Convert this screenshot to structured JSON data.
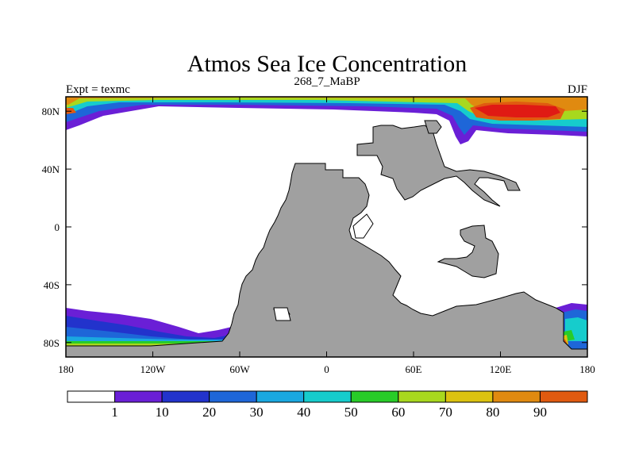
{
  "chart_data": {
    "type": "heatmap",
    "title": "Atmos Sea Ice Concentration",
    "left_label": "Expt = texmc",
    "center_label": "268_7_MaBP",
    "right_label": "DJF",
    "x_ticks": [
      {
        "value": -180,
        "label": "180"
      },
      {
        "value": -120,
        "label": "120W"
      },
      {
        "value": -60,
        "label": "60W"
      },
      {
        "value": 0,
        "label": "0"
      },
      {
        "value": 60,
        "label": "60E"
      },
      {
        "value": 120,
        "label": "120E"
      },
      {
        "value": 180,
        "label": "180"
      }
    ],
    "y_ticks": [
      {
        "value": 80,
        "label": "80N"
      },
      {
        "value": 40,
        "label": "40N"
      },
      {
        "value": 0,
        "label": "0"
      },
      {
        "value": -40,
        "label": "40S"
      },
      {
        "value": -80,
        "label": "80S"
      }
    ],
    "xlim": [
      -180,
      180
    ],
    "ylim": [
      -90,
      90
    ],
    "colorbar": {
      "levels": [
        "1",
        "10",
        "20",
        "30",
        "40",
        "50",
        "60",
        "70",
        "80",
        "90"
      ],
      "colors": [
        "#ffffff",
        "#6a1fd6",
        "#2233cc",
        "#1e66d8",
        "#1aa8e0",
        "#16cccc",
        "#28cc28",
        "#a8d81e",
        "#dcc210",
        "#e08a10",
        "#e05a10",
        "#e01a14"
      ]
    },
    "land_color": "#a0a0a0"
  }
}
